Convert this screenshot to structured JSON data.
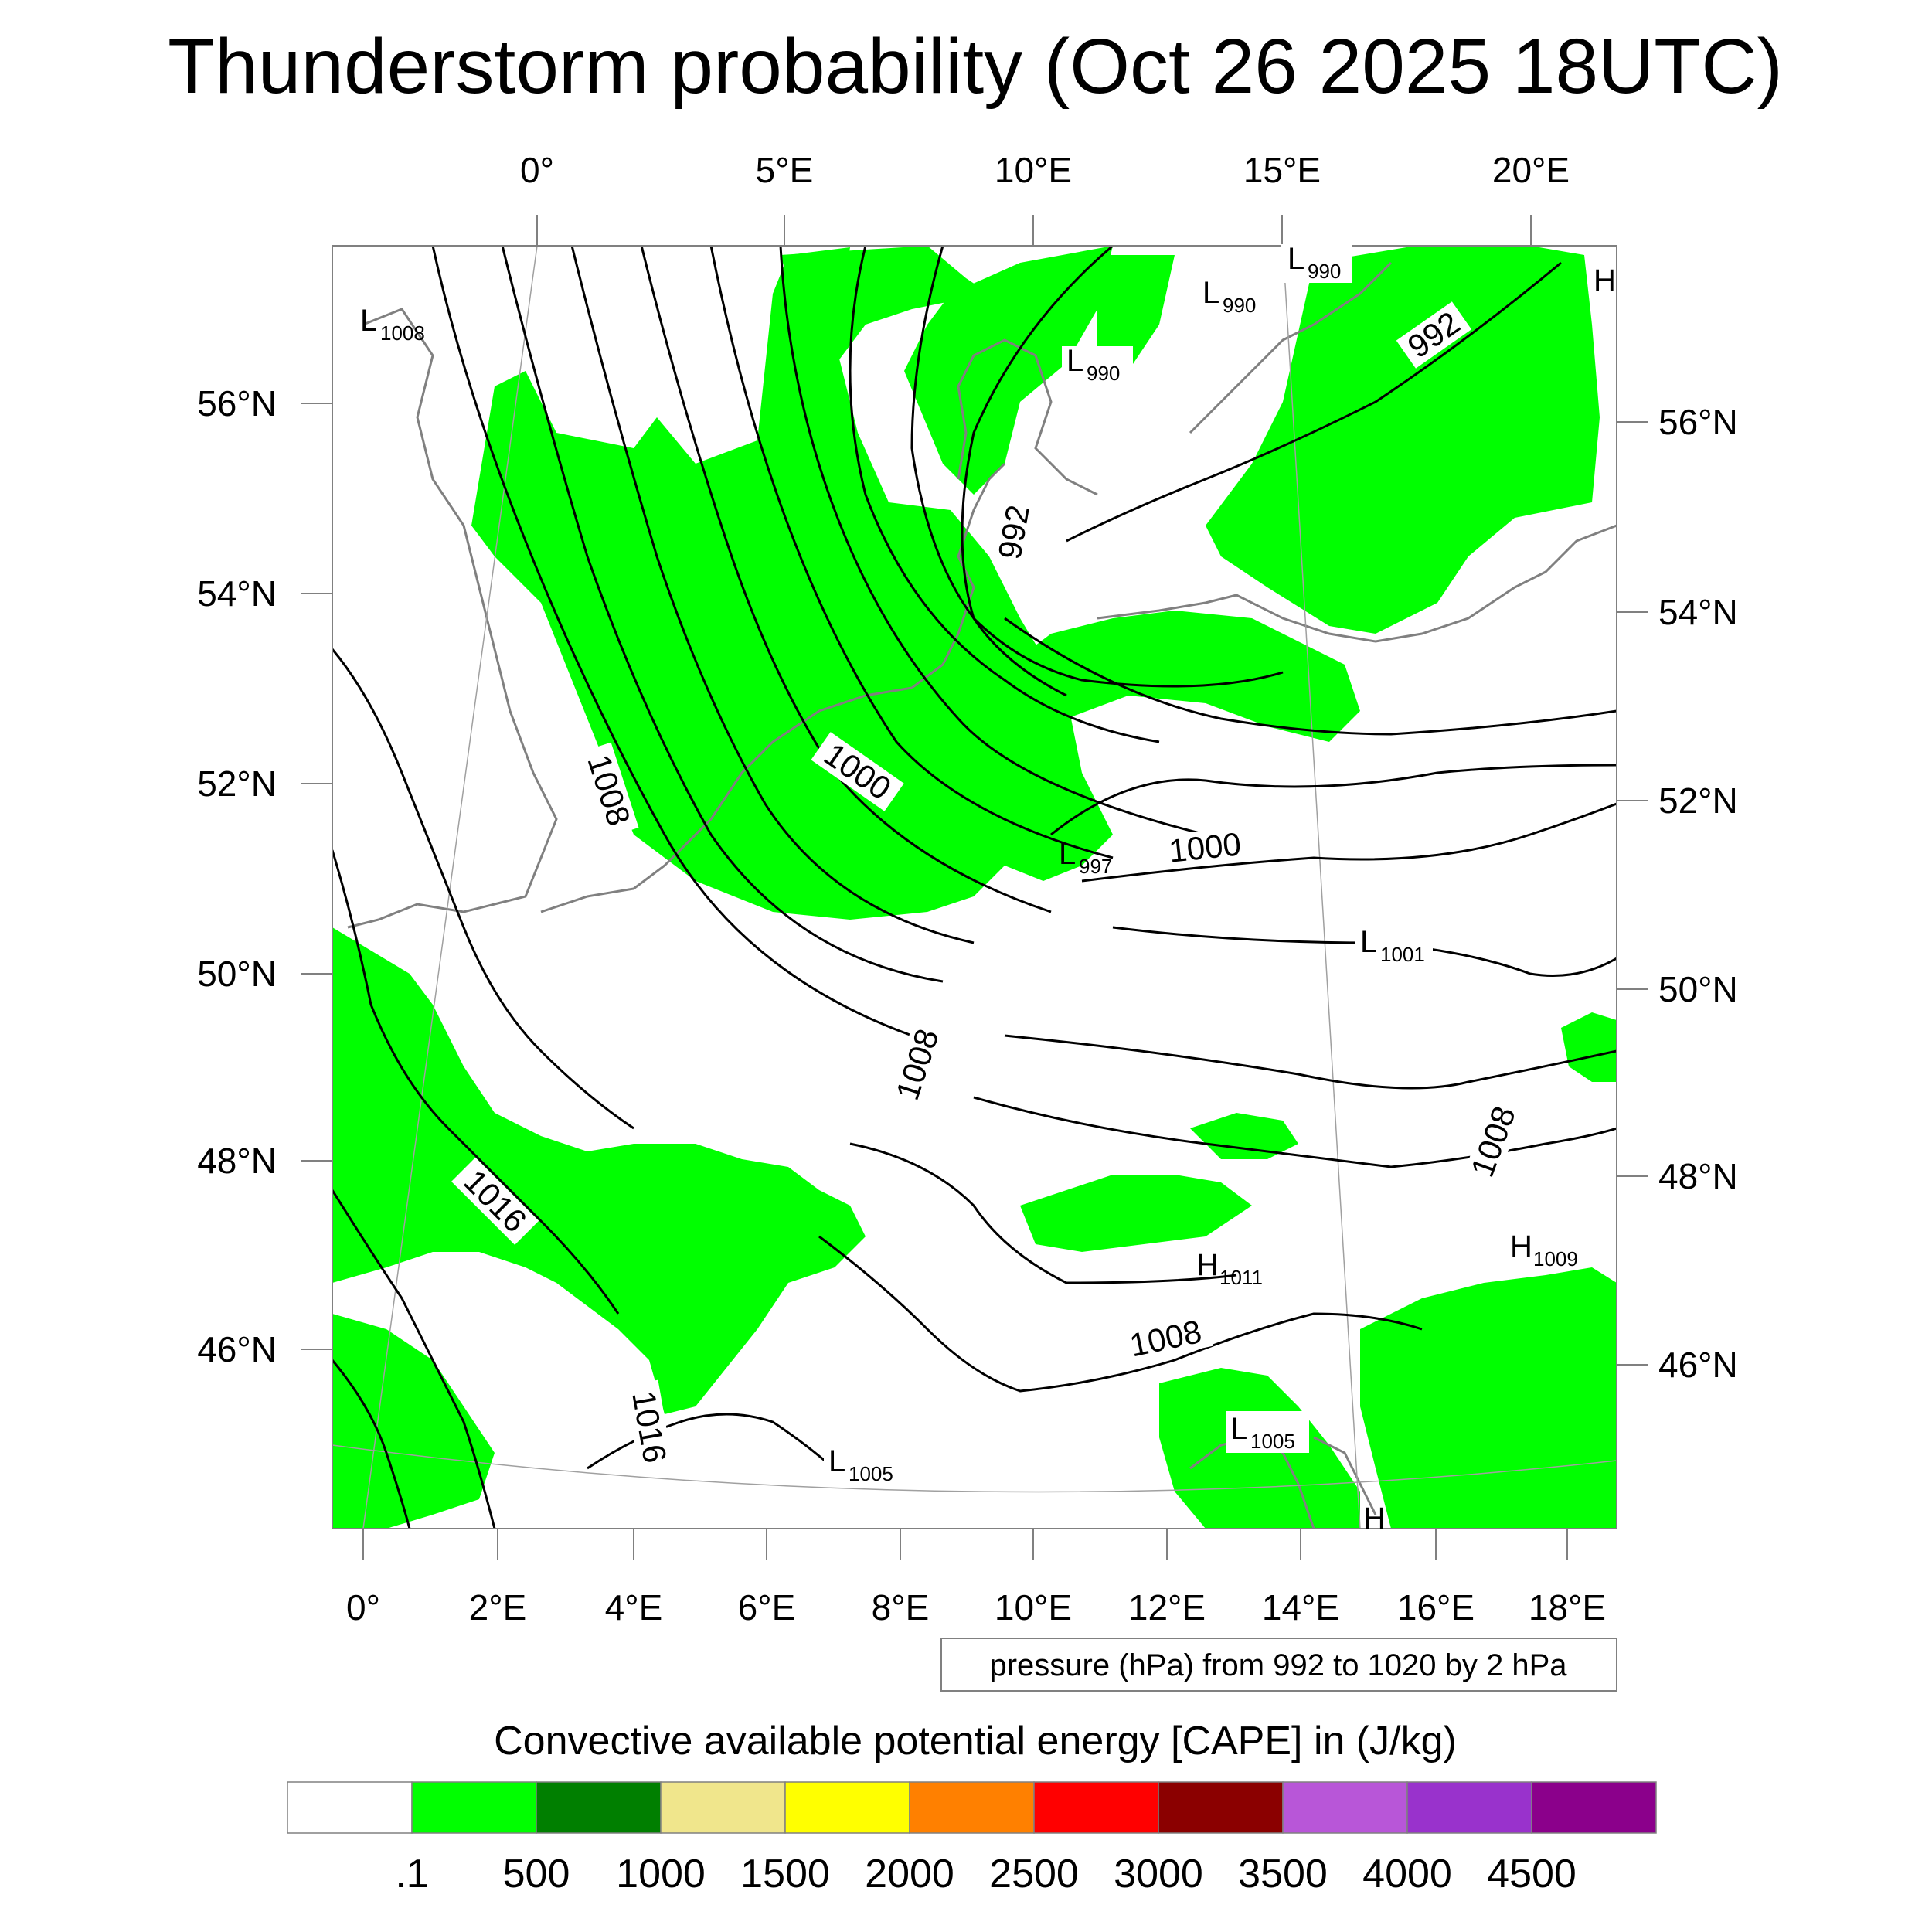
{
  "title": "Thunderstorm probability (Oct 26 2025 18UTC)",
  "map": {
    "top_lon_ticks": [
      "0°",
      "5°E",
      "10°E",
      "15°E",
      "20°E"
    ],
    "bottom_lon_ticks": [
      "0°",
      "2°E",
      "4°E",
      "6°E",
      "8°E",
      "10°E",
      "12°E",
      "14°E",
      "16°E",
      "18°E"
    ],
    "left_lat_ticks": [
      "56°N",
      "54°N",
      "52°N",
      "50°N",
      "48°N",
      "46°N"
    ],
    "right_lat_ticks": [
      "56°N",
      "54°N",
      "52°N",
      "50°N",
      "48°N",
      "46°N"
    ],
    "isobar_labels": [
      "992",
      "992",
      "1000",
      "1000",
      "1008",
      "1008",
      "1008",
      "1008",
      "1016",
      "1016"
    ],
    "pressure_centers": [
      {
        "type": "L",
        "value": "1008"
      },
      {
        "type": "L",
        "value": "990"
      },
      {
        "type": "L",
        "value": "990"
      },
      {
        "type": "L",
        "value": "990"
      },
      {
        "type": "L",
        "value": "997"
      },
      {
        "type": "L",
        "value": "1001"
      },
      {
        "type": "H",
        "value": "1011"
      },
      {
        "type": "H",
        "value": "1009"
      },
      {
        "type": "L",
        "value": "1005"
      },
      {
        "type": "L",
        "value": "1005"
      },
      {
        "type": "H",
        "value": ""
      },
      {
        "type": "H",
        "value": ""
      }
    ],
    "contour_info": "pressure (hPa) from 992 to 1020 by 2 hPa",
    "colors": {
      "cape_fill": "#00ff00",
      "isobar": "#000000",
      "coast": "#808080"
    }
  },
  "legend": {
    "title": "Convective available potential energy [CAPE] in (J/kg)",
    "labels": [
      ".1",
      "500",
      "1000",
      "1500",
      "2000",
      "2500",
      "3000",
      "3500",
      "4000",
      "4500"
    ],
    "colors": [
      "#ffffff",
      "#00ff00",
      "#007f00",
      "#f0e68c",
      "#ffff00",
      "#ff8000",
      "#ff0000",
      "#8b0000",
      "#b856d8",
      "#9932cc",
      "#8b008b"
    ]
  }
}
